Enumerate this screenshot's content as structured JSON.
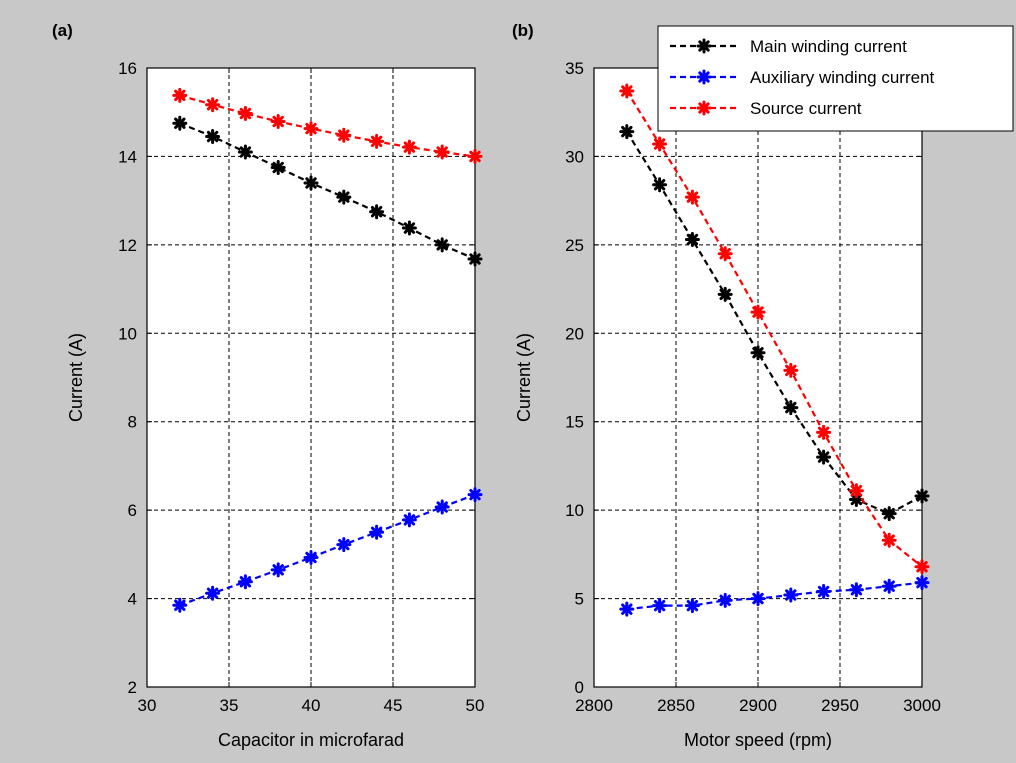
{
  "chart_data": [
    {
      "type": "line",
      "panel_label": "(a)",
      "xlabel": "Capacitor in microfarad",
      "ylabel": "Current (A)",
      "xlim": [
        30,
        50
      ],
      "ylim": [
        2,
        16
      ],
      "xticks": [
        30,
        35,
        40,
        45,
        50
      ],
      "yticks": [
        2,
        4,
        6,
        8,
        10,
        12,
        14,
        16
      ],
      "grid": true,
      "x": [
        32,
        34,
        36,
        38,
        40,
        42,
        44,
        46,
        48,
        50
      ],
      "series": [
        {
          "name": "Main winding current",
          "color": "#000000",
          "values": [
            14.75,
            14.45,
            14.1,
            13.75,
            13.4,
            13.08,
            12.75,
            12.38,
            12.0,
            11.68
          ]
        },
        {
          "name": "Auxiliary winding current",
          "color": "#0000ff",
          "values": [
            3.85,
            4.12,
            4.38,
            4.65,
            4.93,
            5.22,
            5.5,
            5.78,
            6.07,
            6.35
          ]
        },
        {
          "name": "Source current",
          "color": "#ff0000",
          "values": [
            15.38,
            15.17,
            14.97,
            14.79,
            14.63,
            14.48,
            14.34,
            14.21,
            14.1,
            14.0
          ]
        }
      ]
    },
    {
      "type": "line",
      "panel_label": "(b)",
      "xlabel": "Motor speed (rpm)",
      "ylabel": "Current (A)",
      "xlim": [
        2800,
        3000
      ],
      "ylim": [
        0,
        35
      ],
      "xticks": [
        2800,
        2850,
        2900,
        2950,
        3000
      ],
      "yticks": [
        0,
        5,
        10,
        15,
        20,
        25,
        30,
        35
      ],
      "grid": true,
      "legend_position": "top-right",
      "x": [
        2820,
        2840,
        2860,
        2880,
        2900,
        2920,
        2940,
        2960,
        2980,
        3000
      ],
      "series": [
        {
          "name": "Main winding current",
          "color": "#000000",
          "values": [
            31.4,
            28.4,
            25.3,
            22.2,
            18.9,
            15.8,
            13.0,
            10.6,
            9.8,
            10.8
          ]
        },
        {
          "name": "Auxiliary winding current",
          "color": "#0000ff",
          "values": [
            4.4,
            4.6,
            4.6,
            4.9,
            5.0,
            5.2,
            5.4,
            5.5,
            5.7,
            5.9
          ]
        },
        {
          "name": "Source current",
          "color": "#ff0000",
          "values": [
            33.7,
            30.7,
            27.7,
            24.5,
            21.2,
            17.9,
            14.4,
            11.1,
            8.3,
            6.8
          ]
        }
      ]
    }
  ]
}
